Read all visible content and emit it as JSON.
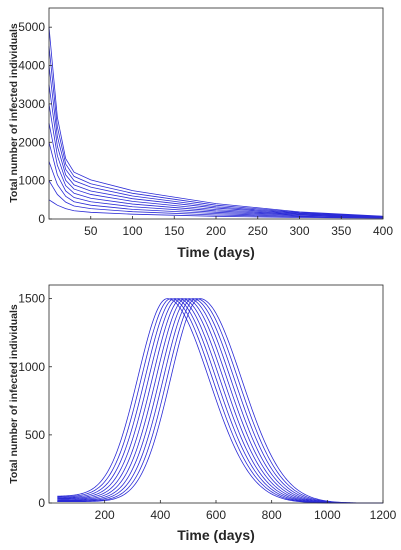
{
  "chart_data": [
    {
      "type": "line",
      "title": "",
      "xlabel": "Time (days)",
      "ylabel": "Total number of infected individuals",
      "xlim": [
        0,
        400
      ],
      "ylim": [
        0,
        5500
      ],
      "xticks": [
        50,
        100,
        150,
        200,
        250,
        300,
        350,
        400
      ],
      "yticks": [
        0,
        1000,
        2000,
        3000,
        4000,
        5000
      ],
      "grid": false,
      "line_color": "#2b2bd6",
      "series_initial_values": [
        500,
        1000,
        1500,
        2000,
        2500,
        3000,
        3500,
        4000,
        4500,
        5000
      ],
      "series": [
        {
          "x": [
            0,
            5,
            10,
            20,
            30,
            50,
            100,
            200,
            300,
            400
          ],
          "y": [
            500,
            430,
            360,
            270,
            215,
            175,
            125,
            70,
            40,
            22
          ]
        },
        {
          "x": [
            0,
            5,
            10,
            20,
            30,
            50,
            100,
            200,
            300,
            400
          ],
          "y": [
            1000,
            820,
            640,
            440,
            340,
            270,
            190,
            105,
            58,
            30
          ]
        },
        {
          "x": [
            0,
            5,
            10,
            20,
            30,
            50,
            100,
            200,
            300,
            400
          ],
          "y": [
            1500,
            1200,
            900,
            590,
            450,
            360,
            250,
            140,
            75,
            36
          ]
        },
        {
          "x": [
            0,
            5,
            10,
            20,
            30,
            50,
            100,
            200,
            300,
            400
          ],
          "y": [
            2000,
            1580,
            1150,
            730,
            560,
            450,
            320,
            175,
            95,
            42
          ]
        },
        {
          "x": [
            0,
            5,
            10,
            20,
            30,
            50,
            100,
            200,
            300,
            400
          ],
          "y": [
            2500,
            1950,
            1400,
            870,
            670,
            540,
            390,
            210,
            110,
            47
          ]
        },
        {
          "x": [
            0,
            5,
            10,
            20,
            30,
            50,
            100,
            200,
            300,
            400
          ],
          "y": [
            3000,
            2320,
            1650,
            1010,
            780,
            640,
            460,
            245,
            125,
            52
          ]
        },
        {
          "x": [
            0,
            5,
            10,
            20,
            30,
            50,
            100,
            200,
            300,
            400
          ],
          "y": [
            3500,
            2700,
            1900,
            1150,
            890,
            730,
            530,
            285,
            140,
            57
          ]
        },
        {
          "x": [
            0,
            5,
            10,
            20,
            30,
            50,
            100,
            200,
            300,
            400
          ],
          "y": [
            4000,
            3070,
            2150,
            1290,
            1000,
            830,
            600,
            320,
            155,
            62
          ]
        },
        {
          "x": [
            0,
            5,
            10,
            20,
            30,
            50,
            100,
            200,
            300,
            400
          ],
          "y": [
            4500,
            3450,
            2400,
            1430,
            1110,
            920,
            670,
            360,
            170,
            67
          ]
        },
        {
          "x": [
            0,
            5,
            10,
            20,
            30,
            50,
            100,
            200,
            300,
            400
          ],
          "y": [
            5000,
            3820,
            2650,
            1570,
            1220,
            1020,
            740,
            400,
            185,
            72
          ]
        }
      ]
    },
    {
      "type": "line",
      "title": "",
      "xlabel": "Time (days)",
      "ylabel": "Total number of infected individuals",
      "xlim": [
        0,
        1200
      ],
      "ylim": [
        0,
        1600
      ],
      "xticks": [
        200,
        400,
        600,
        800,
        1000,
        1200
      ],
      "yticks": [
        0,
        500,
        1000,
        1500
      ],
      "grid": false,
      "line_color": "#2b2bd6",
      "series_peak_days": [
        425,
        438,
        451,
        464,
        477,
        490,
        503,
        516,
        529,
        542
      ],
      "peak_value": 1500,
      "series_start_values": [
        50,
        45,
        40,
        35,
        30,
        25,
        20,
        16,
        12,
        10
      ],
      "end_value": 0
    }
  ]
}
